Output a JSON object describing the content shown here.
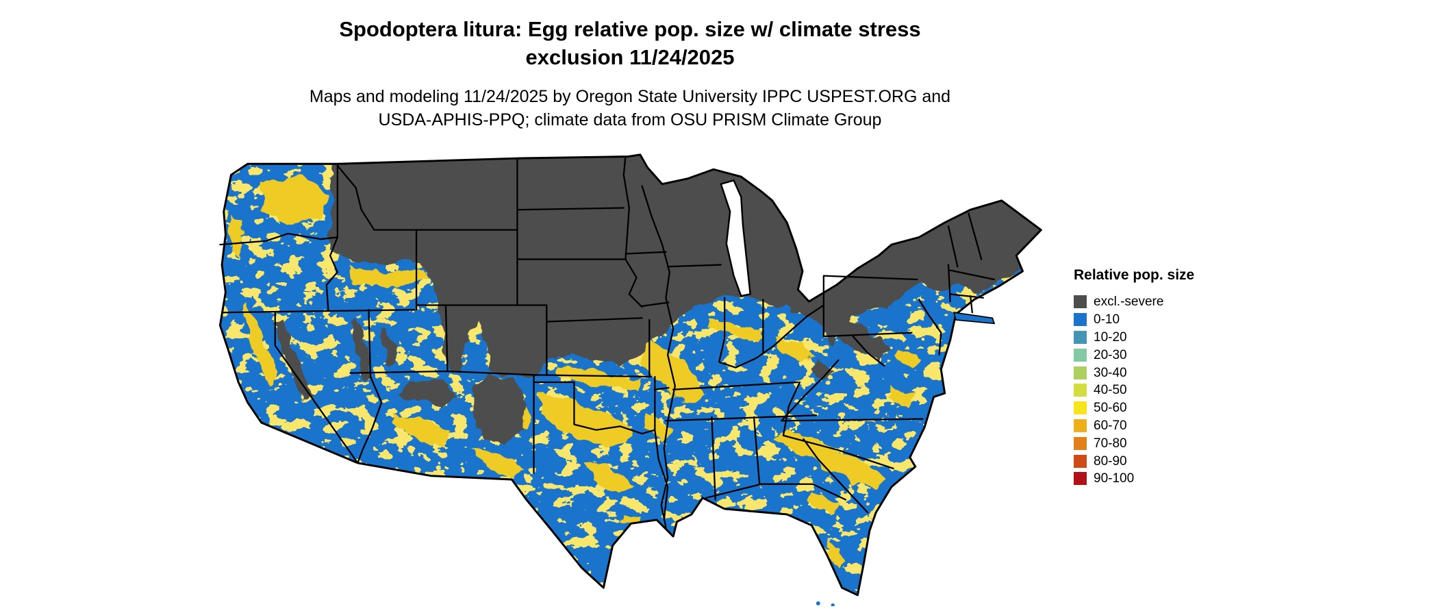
{
  "title": {
    "line1": "Spodoptera litura: Egg relative pop. size w/ climate stress",
    "line2": "exclusion 11/24/2025"
  },
  "subtitle": {
    "line1": "Maps and modeling 11/24/2025 by Oregon State University IPPC USPEST.ORG and",
    "line2": "USDA-APHIS-PPQ; climate data from OSU PRISM Climate Group"
  },
  "legend": {
    "title": "Relative pop. size",
    "items": [
      {
        "label": "excl.-severe",
        "color": "#4D4D4D"
      },
      {
        "label": "0-10",
        "color": "#1B74CB"
      },
      {
        "label": "10-20",
        "color": "#4495B5"
      },
      {
        "label": "20-30",
        "color": "#82C9A4"
      },
      {
        "label": "30-40",
        "color": "#ABD05F"
      },
      {
        "label": "40-50",
        "color": "#D4DD3E"
      },
      {
        "label": "50-60",
        "color": "#F7E51C"
      },
      {
        "label": "60-70",
        "color": "#EFAF1B"
      },
      {
        "label": "70-80",
        "color": "#E2801A"
      },
      {
        "label": "80-90",
        "color": "#D04A17"
      },
      {
        "label": "90-100",
        "color": "#B01217"
      }
    ]
  },
  "map": {
    "name": "Continental United States",
    "base_color": "#1B74CB",
    "exclusion_color": "#4D4D4D",
    "speckle_color": "#EFCB25",
    "border_color": "#000000",
    "water_color": "#FFFFFF"
  }
}
